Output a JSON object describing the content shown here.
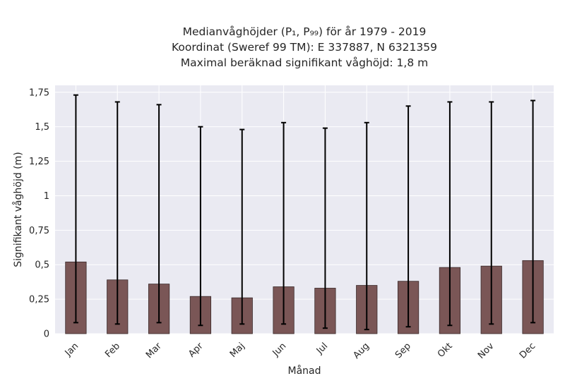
{
  "chart_data": {
    "type": "bar",
    "title_lines": [
      "Medianvåghöjder (P₁, P₉₉) för år 1979 - 2019",
      "Koordinat (Sweref 99 TM): E 337887, N 6321359",
      "Maximal beräknad signifikant våghöjd: 1,8 m"
    ],
    "xlabel": "Månad",
    "ylabel": "Signifikant våghöjd (m)",
    "categories": [
      "Jan",
      "Feb",
      "Mar",
      "Apr",
      "Maj",
      "Jun",
      "Jul",
      "Aug",
      "Sep",
      "Okt",
      "Nov",
      "Dec"
    ],
    "values": [
      0.52,
      0.39,
      0.36,
      0.27,
      0.26,
      0.34,
      0.33,
      0.35,
      0.38,
      0.48,
      0.49,
      0.53
    ],
    "p1": [
      0.08,
      0.07,
      0.08,
      0.06,
      0.07,
      0.07,
      0.04,
      0.03,
      0.05,
      0.06,
      0.07,
      0.08
    ],
    "p99": [
      1.73,
      1.68,
      1.66,
      1.5,
      1.48,
      1.53,
      1.49,
      1.53,
      1.65,
      1.68,
      1.68,
      1.69
    ],
    "ylim": [
      0,
      1.8
    ],
    "yticks": [
      0,
      0.25,
      0.5,
      0.75,
      1,
      1.25,
      1.5,
      1.75
    ],
    "ytick_labels": [
      "0",
      "0,25",
      "0,5",
      "0,75",
      "1",
      "1,25",
      "1,5",
      "1,75"
    ],
    "grid": true,
    "colors": {
      "bar": "#7a5656",
      "bar_edge": "#3a2a2a",
      "background": "#eaeaf2",
      "grid": "#ffffff",
      "error": "#000000"
    }
  }
}
